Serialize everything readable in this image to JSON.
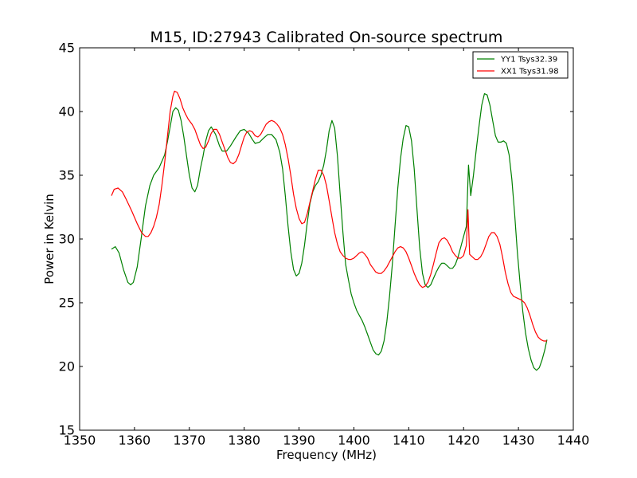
{
  "chart_data": {
    "type": "line",
    "title": "M15, ID:27943 Calibrated On-source spectrum",
    "xlabel": "Frequency (MHz)",
    "ylabel": "Power in Kelvin",
    "xlim": [
      1350,
      1440
    ],
    "ylim": [
      15,
      45
    ],
    "xticks": [
      1350,
      1360,
      1370,
      1380,
      1390,
      1400,
      1410,
      1420,
      1430,
      1440
    ],
    "yticks": [
      15,
      20,
      25,
      30,
      35,
      40,
      45
    ],
    "grid": false,
    "legend_position": "top-right",
    "series": [
      {
        "name": "YY1 Tsys32.39",
        "color": "#008000",
        "points": [
          [
            1355.8,
            29.2
          ],
          [
            1356.5,
            29.4
          ],
          [
            1357.2,
            28.9
          ],
          [
            1358.0,
            27.6
          ],
          [
            1358.8,
            26.6
          ],
          [
            1359.3,
            26.4
          ],
          [
            1359.8,
            26.6
          ],
          [
            1360.5,
            27.8
          ],
          [
            1361.2,
            30.0
          ],
          [
            1362.0,
            32.6
          ],
          [
            1362.8,
            34.2
          ],
          [
            1363.5,
            35.0
          ],
          [
            1364.5,
            35.6
          ],
          [
            1365.5,
            36.6
          ],
          [
            1366.0,
            37.6
          ],
          [
            1366.5,
            38.8
          ],
          [
            1367.0,
            40.0
          ],
          [
            1367.5,
            40.3
          ],
          [
            1368.0,
            40.1
          ],
          [
            1368.5,
            39.3
          ],
          [
            1369.0,
            38.0
          ],
          [
            1369.5,
            36.5
          ],
          [
            1370.0,
            35.0
          ],
          [
            1370.5,
            34.0
          ],
          [
            1371.0,
            33.7
          ],
          [
            1371.5,
            34.2
          ],
          [
            1372.0,
            35.5
          ],
          [
            1372.5,
            36.5
          ],
          [
            1373.0,
            37.7
          ],
          [
            1373.5,
            38.5
          ],
          [
            1374.0,
            38.8
          ],
          [
            1374.8,
            38.2
          ],
          [
            1375.5,
            37.3
          ],
          [
            1376.0,
            36.9
          ],
          [
            1376.8,
            36.9
          ],
          [
            1377.5,
            37.3
          ],
          [
            1378.5,
            38.0
          ],
          [
            1379.3,
            38.5
          ],
          [
            1380.0,
            38.6
          ],
          [
            1380.8,
            38.3
          ],
          [
            1381.5,
            37.8
          ],
          [
            1382.0,
            37.5
          ],
          [
            1382.8,
            37.6
          ],
          [
            1383.5,
            37.9
          ],
          [
            1384.3,
            38.2
          ],
          [
            1385.0,
            38.2
          ],
          [
            1385.8,
            37.8
          ],
          [
            1386.5,
            36.8
          ],
          [
            1387.0,
            35.5
          ],
          [
            1387.5,
            33.4
          ],
          [
            1388.0,
            31.0
          ],
          [
            1388.5,
            29.0
          ],
          [
            1389.0,
            27.6
          ],
          [
            1389.5,
            27.1
          ],
          [
            1390.0,
            27.3
          ],
          [
            1390.5,
            28.1
          ],
          [
            1391.0,
            29.5
          ],
          [
            1391.5,
            31.3
          ],
          [
            1392.0,
            32.8
          ],
          [
            1392.5,
            33.7
          ],
          [
            1393.0,
            34.2
          ],
          [
            1393.5,
            34.5
          ],
          [
            1394.0,
            35.0
          ],
          [
            1394.5,
            35.8
          ],
          [
            1395.0,
            37.0
          ],
          [
            1395.5,
            38.5
          ],
          [
            1396.0,
            39.3
          ],
          [
            1396.5,
            38.7
          ],
          [
            1397.0,
            36.5
          ],
          [
            1397.5,
            33.5
          ],
          [
            1398.0,
            30.5
          ],
          [
            1398.5,
            28.0
          ],
          [
            1399.0,
            26.8
          ],
          [
            1399.5,
            25.7
          ],
          [
            1400.0,
            25.0
          ],
          [
            1400.5,
            24.4
          ],
          [
            1401.0,
            24.0
          ],
          [
            1401.5,
            23.6
          ],
          [
            1402.0,
            23.1
          ],
          [
            1402.5,
            22.5
          ],
          [
            1403.0,
            21.9
          ],
          [
            1403.5,
            21.3
          ],
          [
            1404.0,
            21.0
          ],
          [
            1404.5,
            20.9
          ],
          [
            1405.0,
            21.2
          ],
          [
            1405.5,
            22.0
          ],
          [
            1406.0,
            23.5
          ],
          [
            1406.5,
            25.5
          ],
          [
            1407.0,
            28.0
          ],
          [
            1407.5,
            31.0
          ],
          [
            1408.0,
            34.0
          ],
          [
            1408.5,
            36.3
          ],
          [
            1409.0,
            37.9
          ],
          [
            1409.5,
            38.9
          ],
          [
            1410.0,
            38.8
          ],
          [
            1410.5,
            37.7
          ],
          [
            1411.0,
            35.5
          ],
          [
            1411.5,
            32.3
          ],
          [
            1412.0,
            29.3
          ],
          [
            1412.5,
            27.3
          ],
          [
            1413.0,
            26.4
          ],
          [
            1413.5,
            26.2
          ],
          [
            1414.0,
            26.4
          ],
          [
            1414.5,
            26.9
          ],
          [
            1415.0,
            27.4
          ],
          [
            1415.5,
            27.8
          ],
          [
            1416.0,
            28.1
          ],
          [
            1416.5,
            28.1
          ],
          [
            1417.0,
            27.9
          ],
          [
            1417.5,
            27.7
          ],
          [
            1418.0,
            27.7
          ],
          [
            1418.5,
            28.0
          ],
          [
            1419.0,
            28.6
          ],
          [
            1419.5,
            29.4
          ],
          [
            1420.0,
            30.2
          ],
          [
            1420.5,
            31.0
          ],
          [
            1420.9,
            35.8
          ],
          [
            1421.3,
            33.4
          ],
          [
            1421.8,
            35.0
          ],
          [
            1422.3,
            37.0
          ],
          [
            1422.8,
            38.8
          ],
          [
            1423.3,
            40.5
          ],
          [
            1423.8,
            41.4
          ],
          [
            1424.3,
            41.3
          ],
          [
            1424.8,
            40.5
          ],
          [
            1425.3,
            39.3
          ],
          [
            1425.8,
            38.1
          ],
          [
            1426.3,
            37.6
          ],
          [
            1426.8,
            37.6
          ],
          [
            1427.3,
            37.7
          ],
          [
            1427.8,
            37.5
          ],
          [
            1428.3,
            36.6
          ],
          [
            1428.8,
            34.7
          ],
          [
            1429.3,
            32.0
          ],
          [
            1429.8,
            29.0
          ],
          [
            1430.3,
            26.5
          ],
          [
            1430.8,
            24.3
          ],
          [
            1431.3,
            22.6
          ],
          [
            1431.8,
            21.4
          ],
          [
            1432.3,
            20.5
          ],
          [
            1432.8,
            19.9
          ],
          [
            1433.3,
            19.7
          ],
          [
            1433.8,
            19.9
          ],
          [
            1434.3,
            20.5
          ],
          [
            1434.8,
            21.3
          ],
          [
            1435.2,
            22.1
          ]
        ]
      },
      {
        "name": "XX1 Tsys31.98",
        "color": "#ff0000",
        "points": [
          [
            1355.8,
            33.4
          ],
          [
            1356.3,
            33.9
          ],
          [
            1357.0,
            34.0
          ],
          [
            1357.8,
            33.7
          ],
          [
            1358.5,
            33.1
          ],
          [
            1359.5,
            32.2
          ],
          [
            1360.5,
            31.2
          ],
          [
            1361.3,
            30.5
          ],
          [
            1362.0,
            30.2
          ],
          [
            1362.5,
            30.2
          ],
          [
            1363.0,
            30.5
          ],
          [
            1363.5,
            31.0
          ],
          [
            1364.0,
            31.7
          ],
          [
            1364.5,
            32.7
          ],
          [
            1365.0,
            34.2
          ],
          [
            1365.5,
            36.0
          ],
          [
            1366.0,
            38.0
          ],
          [
            1366.5,
            40.0
          ],
          [
            1367.0,
            41.2
          ],
          [
            1367.3,
            41.6
          ],
          [
            1367.8,
            41.5
          ],
          [
            1368.3,
            41.0
          ],
          [
            1368.8,
            40.3
          ],
          [
            1369.3,
            39.8
          ],
          [
            1369.8,
            39.4
          ],
          [
            1370.5,
            39.0
          ],
          [
            1371.0,
            38.6
          ],
          [
            1371.5,
            38.0
          ],
          [
            1372.0,
            37.4
          ],
          [
            1372.5,
            37.1
          ],
          [
            1373.0,
            37.2
          ],
          [
            1373.5,
            37.7
          ],
          [
            1374.0,
            38.3
          ],
          [
            1374.5,
            38.6
          ],
          [
            1375.0,
            38.6
          ],
          [
            1375.5,
            38.2
          ],
          [
            1376.0,
            37.6
          ],
          [
            1376.5,
            37.0
          ],
          [
            1377.0,
            36.4
          ],
          [
            1377.5,
            36.0
          ],
          [
            1378.0,
            35.9
          ],
          [
            1378.5,
            36.1
          ],
          [
            1379.0,
            36.6
          ],
          [
            1379.5,
            37.3
          ],
          [
            1380.0,
            38.0
          ],
          [
            1380.5,
            38.4
          ],
          [
            1381.0,
            38.5
          ],
          [
            1381.5,
            38.4
          ],
          [
            1382.0,
            38.1
          ],
          [
            1382.5,
            38.0
          ],
          [
            1383.0,
            38.2
          ],
          [
            1383.5,
            38.6
          ],
          [
            1384.0,
            39.0
          ],
          [
            1384.5,
            39.2
          ],
          [
            1385.0,
            39.3
          ],
          [
            1385.5,
            39.2
          ],
          [
            1386.0,
            39.0
          ],
          [
            1386.5,
            38.7
          ],
          [
            1387.0,
            38.2
          ],
          [
            1387.5,
            37.4
          ],
          [
            1388.0,
            36.3
          ],
          [
            1388.5,
            35.0
          ],
          [
            1389.0,
            33.5
          ],
          [
            1389.5,
            32.4
          ],
          [
            1390.0,
            31.6
          ],
          [
            1390.5,
            31.2
          ],
          [
            1391.0,
            31.3
          ],
          [
            1391.5,
            32.0
          ],
          [
            1392.0,
            32.9
          ],
          [
            1392.5,
            33.8
          ],
          [
            1393.0,
            34.7
          ],
          [
            1393.5,
            35.4
          ],
          [
            1394.0,
            35.4
          ],
          [
            1394.5,
            35.0
          ],
          [
            1395.0,
            34.2
          ],
          [
            1395.5,
            33.0
          ],
          [
            1396.0,
            31.7
          ],
          [
            1396.5,
            30.5
          ],
          [
            1397.0,
            29.6
          ],
          [
            1397.5,
            29.0
          ],
          [
            1398.0,
            28.7
          ],
          [
            1398.5,
            28.5
          ],
          [
            1399.0,
            28.4
          ],
          [
            1399.5,
            28.4
          ],
          [
            1400.0,
            28.5
          ],
          [
            1400.5,
            28.7
          ],
          [
            1401.0,
            28.9
          ],
          [
            1401.5,
            29.0
          ],
          [
            1402.0,
            28.8
          ],
          [
            1402.5,
            28.5
          ],
          [
            1403.0,
            28.0
          ],
          [
            1403.5,
            27.7
          ],
          [
            1404.0,
            27.4
          ],
          [
            1404.5,
            27.3
          ],
          [
            1405.0,
            27.3
          ],
          [
            1405.5,
            27.5
          ],
          [
            1406.0,
            27.8
          ],
          [
            1406.5,
            28.2
          ],
          [
            1407.0,
            28.6
          ],
          [
            1407.5,
            29.0
          ],
          [
            1408.0,
            29.3
          ],
          [
            1408.5,
            29.4
          ],
          [
            1409.0,
            29.3
          ],
          [
            1409.5,
            29.0
          ],
          [
            1410.0,
            28.5
          ],
          [
            1410.5,
            27.9
          ],
          [
            1411.0,
            27.3
          ],
          [
            1411.5,
            26.8
          ],
          [
            1412.0,
            26.4
          ],
          [
            1412.5,
            26.2
          ],
          [
            1413.0,
            26.3
          ],
          [
            1413.5,
            26.6
          ],
          [
            1414.0,
            27.2
          ],
          [
            1414.5,
            28.0
          ],
          [
            1415.0,
            28.9
          ],
          [
            1415.5,
            29.7
          ],
          [
            1416.0,
            30.0
          ],
          [
            1416.5,
            30.1
          ],
          [
            1417.0,
            29.9
          ],
          [
            1417.5,
            29.5
          ],
          [
            1418.0,
            29.0
          ],
          [
            1418.5,
            28.7
          ],
          [
            1419.0,
            28.5
          ],
          [
            1419.5,
            28.5
          ],
          [
            1420.0,
            28.7
          ],
          [
            1420.5,
            29.5
          ],
          [
            1420.8,
            32.3
          ],
          [
            1421.1,
            28.8
          ],
          [
            1421.6,
            28.6
          ],
          [
            1422.1,
            28.4
          ],
          [
            1422.6,
            28.4
          ],
          [
            1423.1,
            28.6
          ],
          [
            1423.6,
            29.0
          ],
          [
            1424.1,
            29.6
          ],
          [
            1424.6,
            30.2
          ],
          [
            1425.1,
            30.5
          ],
          [
            1425.6,
            30.5
          ],
          [
            1426.1,
            30.2
          ],
          [
            1426.6,
            29.6
          ],
          [
            1427.1,
            28.6
          ],
          [
            1427.6,
            27.4
          ],
          [
            1428.1,
            26.5
          ],
          [
            1428.6,
            25.8
          ],
          [
            1429.1,
            25.5
          ],
          [
            1429.6,
            25.4
          ],
          [
            1430.1,
            25.3
          ],
          [
            1430.6,
            25.2
          ],
          [
            1431.1,
            25.0
          ],
          [
            1431.6,
            24.6
          ],
          [
            1432.1,
            24.0
          ],
          [
            1432.6,
            23.3
          ],
          [
            1433.1,
            22.7
          ],
          [
            1433.6,
            22.3
          ],
          [
            1434.1,
            22.1
          ],
          [
            1434.6,
            22.0
          ],
          [
            1435.2,
            22.0
          ]
        ]
      }
    ]
  }
}
